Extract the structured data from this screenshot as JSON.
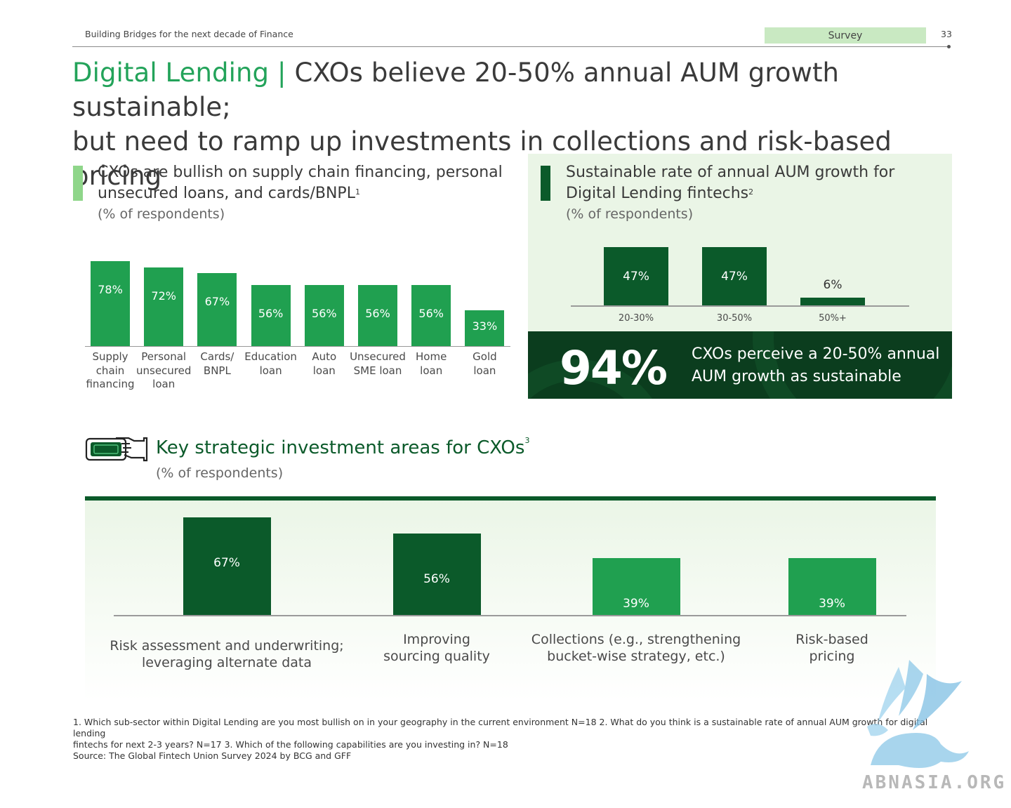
{
  "header": {
    "report_title": "Building Bridges for the next decade of Finance",
    "tag": "Survey",
    "page_number": "33"
  },
  "title": {
    "accent": "Digital Lending",
    "separator": " | ",
    "line1_rest": "CXOs believe 20-50% annual AUM growth sustainable;",
    "line2": "but need to ramp up investments in collections and risk-based pricing"
  },
  "colors": {
    "accent_green": "#23a35a",
    "dark_green": "#0b5a2a",
    "bright_green": "#20a050",
    "light_green_bg": "#eaf5e6",
    "banner_bg": "#0b3d1e"
  },
  "left_section": {
    "title": "CXOs are bullish on supply chain financing, personal unsecured loans, and cards/BNPL",
    "footnote_ref": "1",
    "subtitle": "(% of respondents)"
  },
  "right_section": {
    "title": "Sustainable rate of annual AUM growth for Digital Lending fintechs",
    "footnote_ref": "2",
    "subtitle": "(% of respondents)",
    "banner_value": "94%",
    "banner_text": "CXOs perceive a 20-50% annual AUM growth as sustainable"
  },
  "bottom_section": {
    "title": "Key strategic investment areas for CXOs",
    "footnote_ref": "3",
    "subtitle": "(% of respondents)",
    "icon": "hand-holding-cash-icon"
  },
  "chart_data": [
    {
      "type": "bar",
      "categories": [
        "Supply chain financing",
        "Personal unsecured loan",
        "Cards/ BNPL",
        "Education loan",
        "Auto loan",
        "Unsecured SME loan",
        "Home loan",
        "Gold loan"
      ],
      "values": [
        78,
        72,
        67,
        56,
        56,
        56,
        56,
        33
      ],
      "value_labels": [
        "78%",
        "72%",
        "67%",
        "56%",
        "56%",
        "56%",
        "56%",
        "33%"
      ],
      "ylim": [
        0,
        100
      ],
      "color": "#20a050"
    },
    {
      "type": "bar",
      "categories": [
        "20-30%",
        "30-50%",
        "50%+"
      ],
      "values": [
        47,
        47,
        6
      ],
      "value_labels": [
        "47%",
        "47%",
        "6%"
      ],
      "ylim": [
        0,
        100
      ],
      "colors": [
        "#0b5a2a",
        "#0b5a2a",
        "#0b5a2a"
      ]
    },
    {
      "type": "bar",
      "categories": [
        "Risk assessment and underwriting; leveraging alternate data",
        "Improving sourcing quality",
        "Collections (e.g., strengthening bucket-wise strategy, etc.)",
        "Risk-based pricing"
      ],
      "category_lines": [
        [
          "Risk assessment and underwriting;",
          "leveraging alternate data"
        ],
        [
          "Improving",
          "sourcing quality"
        ],
        [
          "Collections (e.g., strengthening",
          "bucket-wise strategy, etc.)"
        ],
        [
          "Risk-based",
          "pricing"
        ]
      ],
      "values": [
        67,
        56,
        39,
        39
      ],
      "value_labels": [
        "67%",
        "56%",
        "39%",
        "39%"
      ],
      "ylim": [
        0,
        100
      ],
      "colors": [
        "#0b5a2a",
        "#0b5a2a",
        "#20a050",
        "#20a050"
      ]
    }
  ],
  "chart1_label_lines": [
    [
      "Supply",
      "chain",
      "financing"
    ],
    [
      "Personal",
      "unsecured",
      "loan"
    ],
    [
      "Cards/",
      "BNPL"
    ],
    [
      "Education",
      "loan"
    ],
    [
      "Auto",
      "loan"
    ],
    [
      "Unsecured",
      "SME loan"
    ],
    [
      "Home",
      "loan"
    ],
    [
      "Gold",
      "loan"
    ]
  ],
  "footnotes": {
    "line1": "1. Which sub-sector within Digital Lending are you most bullish on in your geography in the current environment N=18 2. What do you think is a sustainable rate of annual AUM growth for digital lending",
    "line2": "fintechs for next 2-3 years? N=17 3. Which of the following capabilities are you investing in? N=18",
    "line3": "Source: The Global Fintech Union Survey 2024 by BCG and GFF"
  },
  "watermark": {
    "text": "ABNASIA.ORG",
    "icon": "griffin-icon"
  }
}
